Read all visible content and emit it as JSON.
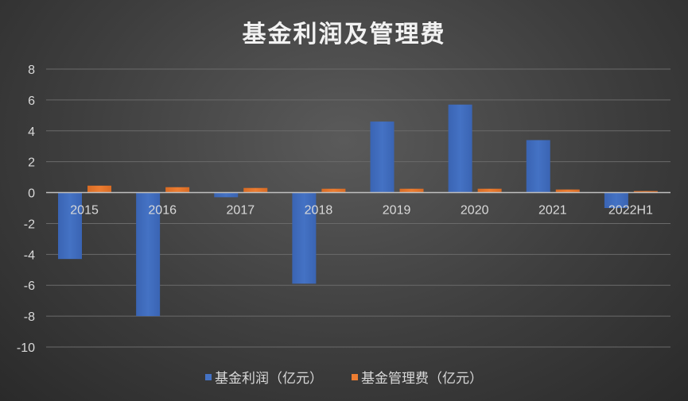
{
  "chart_data": {
    "type": "bar",
    "title": "基金利润及管理费",
    "categories": [
      "2015",
      "2016",
      "2017",
      "2018",
      "2019",
      "2020",
      "2021",
      "2022H1"
    ],
    "series": [
      {
        "name": "基金利润（亿元）",
        "color": "#4472c4",
        "values": [
          -4.3,
          -8.0,
          -0.3,
          -5.9,
          4.6,
          5.7,
          3.4,
          -1.0
        ]
      },
      {
        "name": "基金管理费（亿元）",
        "color": "#ed7d31",
        "values": [
          0.45,
          0.35,
          0.3,
          0.25,
          0.25,
          0.25,
          0.2,
          0.1
        ]
      }
    ],
    "ylim": [
      -10,
      8
    ],
    "yticks": [
      8,
      6,
      4,
      2,
      0,
      -2,
      -4,
      -6,
      -8,
      -10
    ],
    "grid": true,
    "legend_position": "bottom",
    "xlabel": "",
    "ylabel": ""
  }
}
